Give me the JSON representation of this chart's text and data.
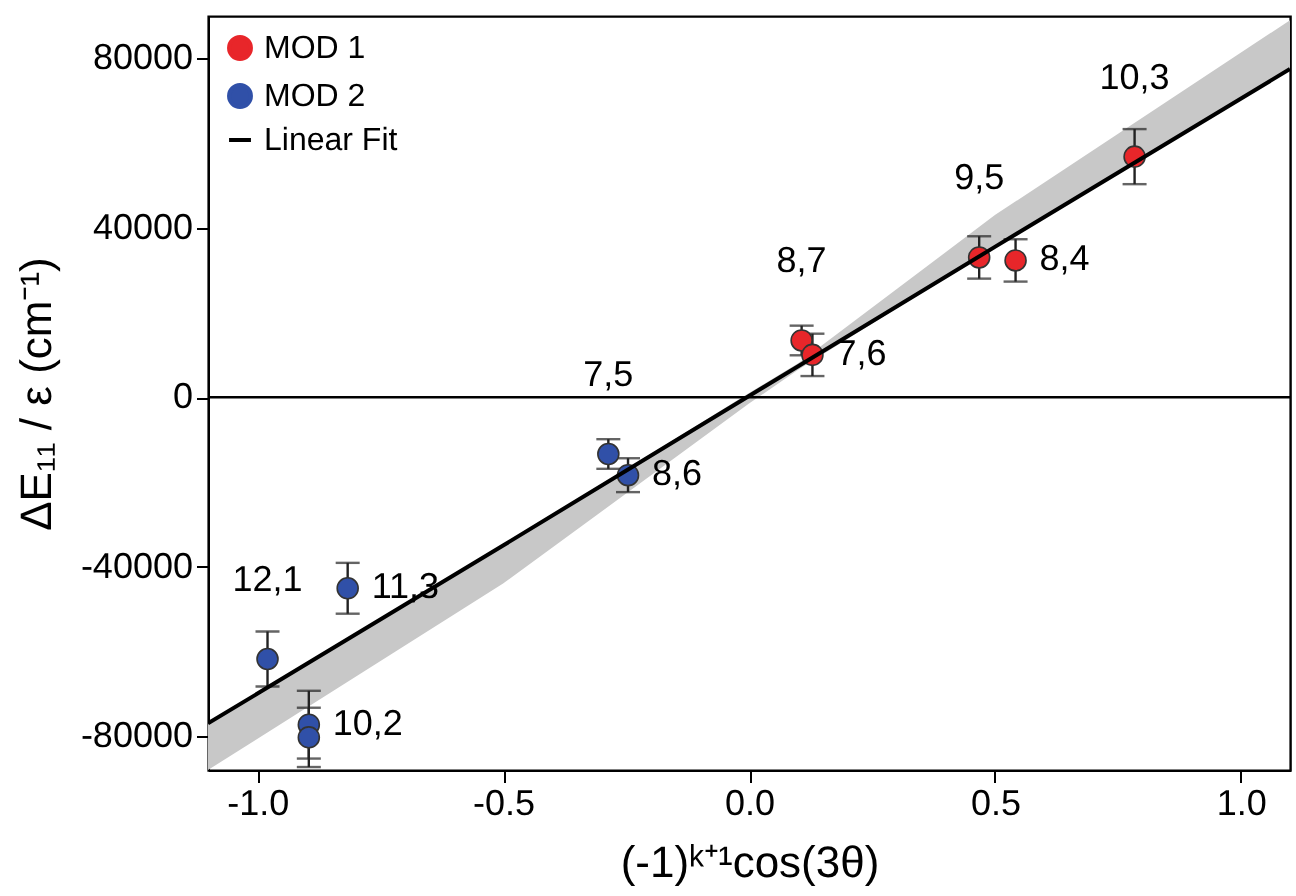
{
  "chart_data": {
    "type": "scatter",
    "xlabel": "(-1)ᵏ⁺¹cos(3θ)",
    "ylabel": "ΔE₁₁ / ε (cm⁻¹)",
    "xlim": [
      -1.1,
      1.1
    ],
    "ylim": [
      -88000,
      90000
    ],
    "xticks": [
      {
        "value": -1,
        "label": "-1.0"
      },
      {
        "value": -0.5,
        "label": "-0.5"
      },
      {
        "value": 0,
        "label": "0.0"
      },
      {
        "value": 0.5,
        "label": "0.5"
      },
      {
        "value": 1,
        "label": "1.0"
      }
    ],
    "yticks": [
      -80000,
      -40000,
      0,
      40000,
      80000
    ],
    "legend": "top left",
    "series": [
      {
        "name": "MOD 1",
        "marker": "circle",
        "color": "#e8262a",
        "x": [
          0.107,
          0.129,
          0.468,
          0.542,
          0.784
        ],
        "values": [
          13400,
          10000,
          33000,
          32300,
          56800
        ],
        "errors": [
          3500,
          5000,
          5000,
          5000,
          6500
        ]
      },
      {
        "name": "MOD 2",
        "marker": "circle",
        "color": "#3050a8",
        "x": [
          -0.286,
          -0.246,
          -0.816,
          -0.979,
          -0.895,
          -0.895
        ],
        "values": [
          -13400,
          -18400,
          -45100,
          -61800,
          -77300,
          -80300
        ],
        "errors": [
          3500,
          4000,
          6000,
          6500,
          8000,
          7000
        ]
      },
      {
        "name": "Linear Fit",
        "type": "line",
        "color": "#000000",
        "x": [
          -1.1,
          -0.5,
          0,
          0.1,
          0.5,
          1.1
        ],
        "values": [
          -77000,
          -35000,
          300,
          7300,
          35500,
          77500
        ],
        "lower": [
          -88000,
          -44000,
          -1500,
          6500,
          35500,
          77500
        ],
        "upper": [
          -77000,
          -35000,
          1000,
          8000,
          43000,
          89000
        ]
      }
    ],
    "ref_lines": [
      {
        "axis": "y",
        "value": 0,
        "color": "#000000"
      }
    ],
    "annotations": [
      {
        "text": "10,3",
        "x": 0.784,
        "y": 56800
      },
      {
        "text": "8,4",
        "x": 0.542,
        "y": 32300
      },
      {
        "text": "9,5",
        "x": 0.468,
        "y": 33000
      },
      {
        "text": "7,6",
        "x": 0.129,
        "y": 10000
      },
      {
        "text": "8,7",
        "x": 0.107,
        "y": 13400
      },
      {
        "text": "8,6",
        "x": -0.246,
        "y": -18400
      },
      {
        "text": "7,5",
        "x": -0.286,
        "y": -13400
      },
      {
        "text": "10,2",
        "x": -0.895,
        "y": -77300
      },
      {
        "text": "12,1",
        "x": -0.979,
        "y": -61800
      },
      {
        "text": "11,3",
        "x": -0.816,
        "y": -45100
      }
    ]
  }
}
